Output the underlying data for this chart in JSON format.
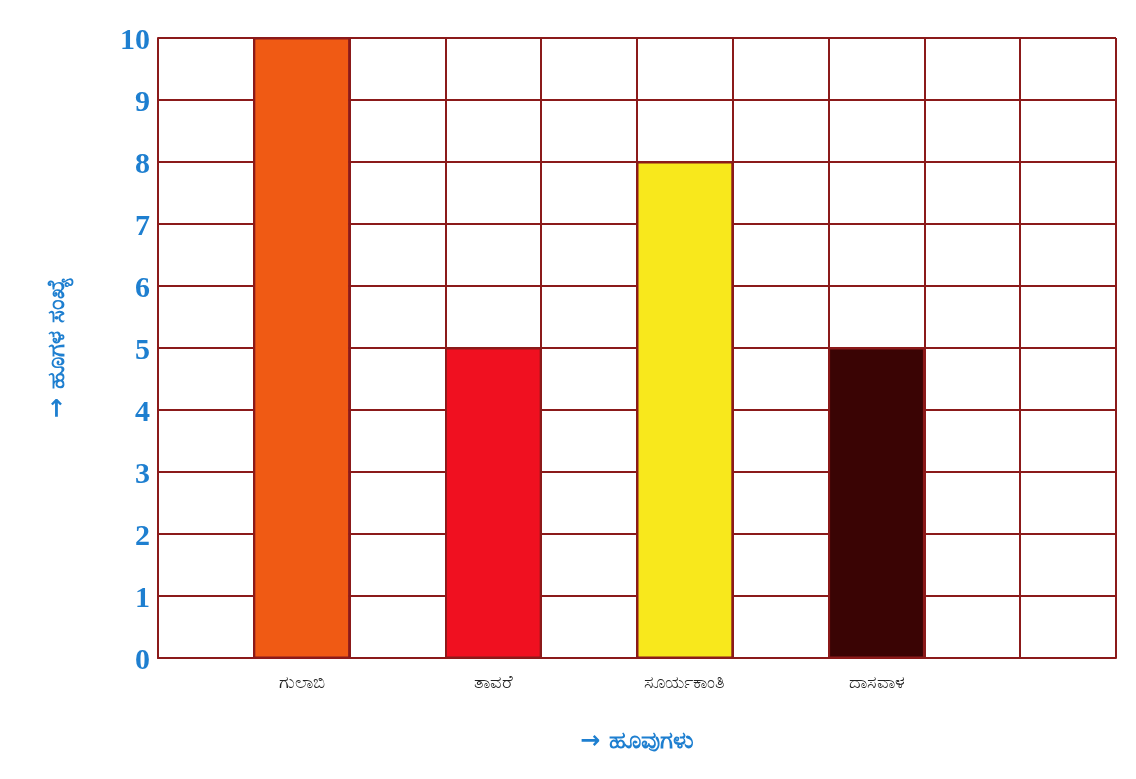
{
  "chart_data": {
    "type": "bar",
    "xlabel": "→ ಹೂವುಗಳು",
    "ylabel": "→ ಹೂಗಳ ಸಂಖ್ಯೆ",
    "categories": [
      null,
      "ಗುಲಾಬಿ",
      null,
      "ತಾವರೆ",
      null,
      "ಸೂರ್ಯಕಾಂತಿ",
      null,
      "ದಾಸವಾಳ",
      null,
      null
    ],
    "values": [
      null,
      10,
      null,
      5,
      null,
      8,
      null,
      5,
      null,
      null
    ],
    "colors": [
      null,
      "#f05a14",
      null,
      "#f01020",
      null,
      "#f8e81c",
      null,
      "#3a0404",
      null,
      null
    ],
    "ylim": [
      0,
      10
    ],
    "yticks": [
      0,
      1,
      2,
      3,
      4,
      5,
      6,
      7,
      8,
      9,
      10
    ],
    "grid": true
  }
}
